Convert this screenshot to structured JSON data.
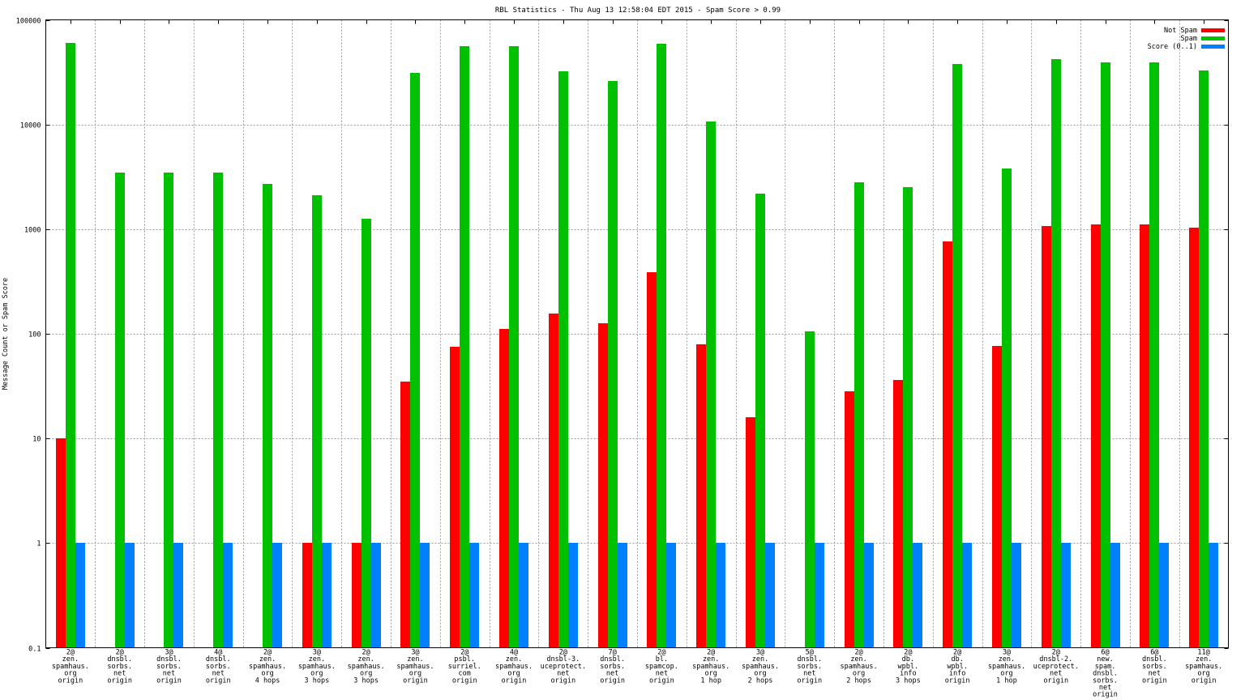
{
  "chart_data": {
    "type": "bar",
    "title": "RBL Statistics - Thu Aug 13 12:58:04 EDT 2015 - Spam Score > 0.99",
    "xlabel": "",
    "ylabel": "Message Count or Spam Score",
    "yscale": "log",
    "ylim": [
      0.1,
      100000
    ],
    "yticks": [
      0.1,
      1,
      10,
      100,
      1000,
      10000,
      100000
    ],
    "ytick_labels": [
      "0.1",
      "1",
      "10",
      "100",
      "1000",
      "10000",
      "100000"
    ],
    "grid": true,
    "legend_position": "top-right",
    "categories": [
      [
        "2@",
        "zen.",
        "spamhaus.",
        "org",
        "origin"
      ],
      [
        "2@",
        "dnsbl.",
        "sorbs.",
        "net",
        "origin"
      ],
      [
        "3@",
        "dnsbl.",
        "sorbs.",
        "net",
        "origin"
      ],
      [
        "4@",
        "dnsbl.",
        "sorbs.",
        "net",
        "origin"
      ],
      [
        "2@",
        "zen.",
        "spamhaus.",
        "org",
        "4 hops"
      ],
      [
        "3@",
        "zen.",
        "spamhaus.",
        "org",
        "3 hops"
      ],
      [
        "2@",
        "zen.",
        "spamhaus.",
        "org",
        "3 hops"
      ],
      [
        "3@",
        "zen.",
        "spamhaus.",
        "org",
        "origin"
      ],
      [
        "2@",
        "psbl.",
        "surriel.",
        "com",
        "origin"
      ],
      [
        "4@",
        "zen.",
        "spamhaus.",
        "org",
        "origin"
      ],
      [
        "2@",
        "dnsbl-3.",
        "uceprotect.",
        "net",
        "origin"
      ],
      [
        "7@",
        "dnsbl.",
        "sorbs.",
        "net",
        "origin"
      ],
      [
        "2@",
        "bl.",
        "spamcop.",
        "net",
        "origin"
      ],
      [
        "2@",
        "zen.",
        "spamhaus.",
        "org",
        "1 hop"
      ],
      [
        "3@",
        "zen.",
        "spamhaus.",
        "org",
        "2 hops"
      ],
      [
        "5@",
        "dnsbl.",
        "sorbs.",
        "net",
        "origin"
      ],
      [
        "2@",
        "zen.",
        "spamhaus.",
        "org",
        "2 hops"
      ],
      [
        "2@",
        "db.",
        "wpbl.",
        "info",
        "3 hops"
      ],
      [
        "2@",
        "db.",
        "wpbl.",
        "info",
        "origin"
      ],
      [
        "3@",
        "zen.",
        "spamhaus.",
        "org",
        "1 hop"
      ],
      [
        "2@",
        "dnsbl-2.",
        "uceprotect.",
        "net",
        "origin"
      ],
      [
        "6@",
        "new.",
        "spam.",
        "dnsbl.",
        "sorbs.",
        "net",
        "origin"
      ],
      [
        "6@",
        "dnsbl.",
        "sorbs.",
        "net",
        "origin"
      ],
      [
        "11@",
        "zen.",
        "spamhaus.",
        "org",
        "origin"
      ]
    ],
    "series": [
      {
        "name": "Not Spam",
        "color": "#ff0000",
        "values": [
          10,
          null,
          null,
          null,
          null,
          1,
          1,
          35,
          75,
          112,
          155,
          125,
          390,
          79,
          16,
          null,
          28,
          36,
          760,
          76,
          1080,
          1110,
          1110,
          1040
        ]
      },
      {
        "name": "Spam",
        "color": "#00c000",
        "values": [
          60000,
          3500,
          3500,
          3500,
          2700,
          2100,
          1250,
          31000,
          56000,
          56000,
          32000,
          26000,
          59000,
          10700,
          2200,
          106,
          2800,
          2500,
          38000,
          3800,
          42000,
          39000,
          39000,
          33000
        ]
      },
      {
        "name": "Score (0..1)",
        "color": "#0080ff",
        "values": [
          1,
          1,
          1,
          1,
          1,
          1,
          1,
          1,
          1,
          1,
          1,
          1,
          1,
          1,
          1,
          1,
          1,
          1,
          1,
          1,
          1,
          1,
          1,
          1
        ]
      }
    ]
  }
}
